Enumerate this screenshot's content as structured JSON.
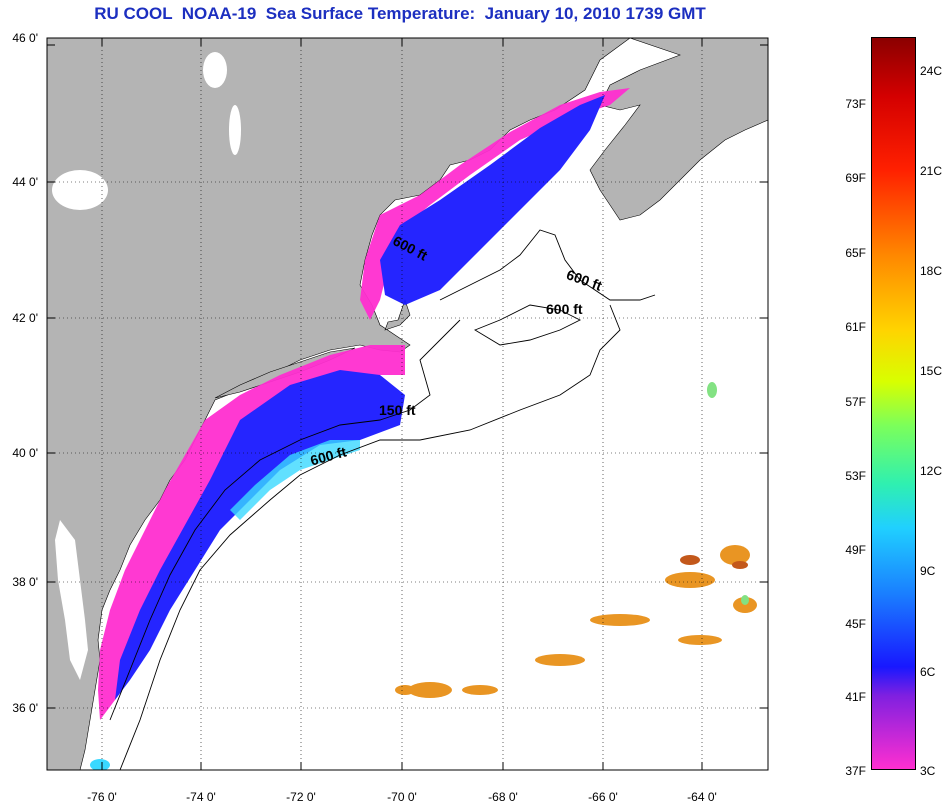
{
  "title": "RU COOL  NOAA-19  Sea Surface Temperature:  January 10, 2010 1739 GMT",
  "axes": {
    "lat_labels": [
      "46 0'",
      "44 0'",
      "42 0'",
      "40 0'",
      "38 0'",
      "36 0'"
    ],
    "lon_labels": [
      "-76 0'",
      "-74 0'",
      "-72 0'",
      "-70 0'",
      "-68 0'",
      "-66 0'",
      "-64 0'"
    ]
  },
  "contour_labels": [
    "600 ft",
    "600 ft",
    "600 ft",
    "150 ft",
    "600 ft"
  ],
  "colorbar": {
    "fahrenheit_labels": [
      "73F",
      "69F",
      "65F",
      "61F",
      "57F",
      "53F",
      "49F",
      "45F",
      "41F",
      "37F"
    ],
    "celsius_labels": [
      "24C",
      "21C",
      "18C",
      "15C",
      "12C",
      "9C",
      "6C",
      "3C"
    ],
    "colors": {
      "land": "#b4b4b4",
      "sea": "#ffffff",
      "cold": "#ff2fd0",
      "cool": "#1a1aff",
      "mid": "#2fd6ff",
      "warm": "#e89018",
      "hot": "#8b0000"
    }
  }
}
